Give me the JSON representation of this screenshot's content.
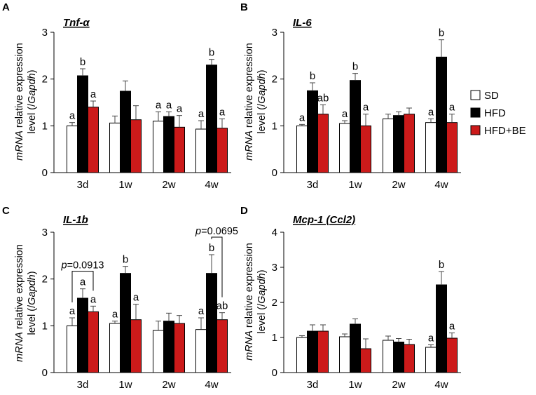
{
  "colors": {
    "SD": "#ffffff",
    "HFD": "#000000",
    "HFD+BE": "#cc1a1a",
    "err": "#555555"
  },
  "ylabel_prefix": "mRNA",
  "ylabel_mid": " relative expression",
  "ylabel_level": "level (/",
  "ylabel_gapdh": "Gapdh",
  "ylabel_close": ")",
  "legend": [
    "SD",
    "HFD",
    "HFD+BE"
  ],
  "chart_data": [
    {
      "panel": "A",
      "title": "Tnf-α",
      "type": "bar",
      "categories": [
        "3d",
        "1w",
        "2w",
        "4w"
      ],
      "ylim": [
        0,
        3
      ],
      "yticks": [
        "0",
        "1",
        "2",
        "3"
      ],
      "series": [
        {
          "name": "SD",
          "values": [
            1.0,
            1.06,
            1.1,
            0.93
          ],
          "errors": [
            0.07,
            0.15,
            0.2,
            0.18
          ],
          "labels": [
            "a",
            "",
            "a",
            "a"
          ]
        },
        {
          "name": "HFD",
          "values": [
            2.07,
            1.74,
            1.2,
            2.3
          ],
          "errors": [
            0.15,
            0.22,
            0.1,
            0.12
          ],
          "labels": [
            "b",
            "",
            "a",
            "b"
          ]
        },
        {
          "name": "HFD+BE",
          "values": [
            1.4,
            1.13,
            0.97,
            0.95
          ],
          "errors": [
            0.13,
            0.3,
            0.25,
            0.2
          ],
          "labels": [
            "a",
            "",
            "a",
            "a"
          ]
        }
      ]
    },
    {
      "panel": "B",
      "title": "IL-6",
      "type": "bar",
      "categories": [
        "3d",
        "1w",
        "2w",
        "4w"
      ],
      "ylim": [
        0,
        3
      ],
      "yticks": [
        "0",
        "1",
        "2",
        "3"
      ],
      "series": [
        {
          "name": "SD",
          "values": [
            1.0,
            1.05,
            1.15,
            1.07
          ],
          "errors": [
            0.03,
            0.06,
            0.1,
            0.08
          ],
          "labels": [
            "a",
            "a",
            "",
            "a"
          ]
        },
        {
          "name": "HFD",
          "values": [
            1.75,
            1.97,
            1.22,
            2.47
          ],
          "errors": [
            0.17,
            0.15,
            0.08,
            0.37
          ],
          "labels": [
            "b",
            "b",
            "",
            "b"
          ]
        },
        {
          "name": "HFD+BE",
          "values": [
            1.25,
            1.0,
            1.25,
            1.07
          ],
          "errors": [
            0.2,
            0.25,
            0.13,
            0.18
          ],
          "labels": [
            "ab",
            "a",
            "",
            "a"
          ]
        }
      ]
    },
    {
      "panel": "C",
      "title": "IL-1b",
      "type": "bar",
      "categories": [
        "3d",
        "1w",
        "2w",
        "4w"
      ],
      "ylim": [
        0,
        3
      ],
      "yticks": [
        "0",
        "1",
        "2",
        "3"
      ],
      "series": [
        {
          "name": "SD",
          "values": [
            1.0,
            1.05,
            0.9,
            0.92
          ],
          "errors": [
            0.17,
            0.05,
            0.2,
            0.25
          ],
          "labels": [
            "a",
            "a",
            "",
            "a"
          ]
        },
        {
          "name": "HFD",
          "values": [
            1.59,
            2.12,
            1.1,
            2.12
          ],
          "errors": [
            0.2,
            0.15,
            0.17,
            0.4
          ],
          "labels": [
            "a",
            "b",
            "",
            "b"
          ]
        },
        {
          "name": "HFD+BE",
          "values": [
            1.3,
            1.13,
            1.05,
            1.13
          ],
          "errors": [
            0.12,
            0.33,
            0.17,
            0.15
          ],
          "labels": [
            "a",
            "a",
            "",
            "ab"
          ]
        }
      ],
      "pvalues": [
        {
          "label": "p=0.0913",
          "category": 0,
          "from": "SD",
          "to": "HFD+BE"
        },
        {
          "label": "p=0.0695",
          "category": 3,
          "from": "HFD",
          "to": "HFD+BE"
        }
      ]
    },
    {
      "panel": "D",
      "title": "Mcp-1 (Ccl2)",
      "type": "bar",
      "categories": [
        "3d",
        "1w",
        "2w",
        "4w"
      ],
      "ylim": [
        0,
        4
      ],
      "yticks": [
        "0",
        "1",
        "2",
        "3",
        "4"
      ],
      "series": [
        {
          "name": "SD",
          "values": [
            1.0,
            1.02,
            0.92,
            0.72
          ],
          "errors": [
            0.05,
            0.08,
            0.12,
            0.07
          ],
          "labels": [
            "",
            "",
            "",
            "a"
          ]
        },
        {
          "name": "HFD",
          "values": [
            1.18,
            1.38,
            0.87,
            2.5
          ],
          "errors": [
            0.18,
            0.15,
            0.1,
            0.38
          ],
          "labels": [
            "",
            "",
            "",
            "b"
          ]
        },
        {
          "name": "HFD+BE",
          "values": [
            1.18,
            0.68,
            0.8,
            0.98
          ],
          "errors": [
            0.18,
            0.28,
            0.15,
            0.15
          ],
          "labels": [
            "",
            "",
            "",
            "a"
          ]
        }
      ]
    }
  ]
}
